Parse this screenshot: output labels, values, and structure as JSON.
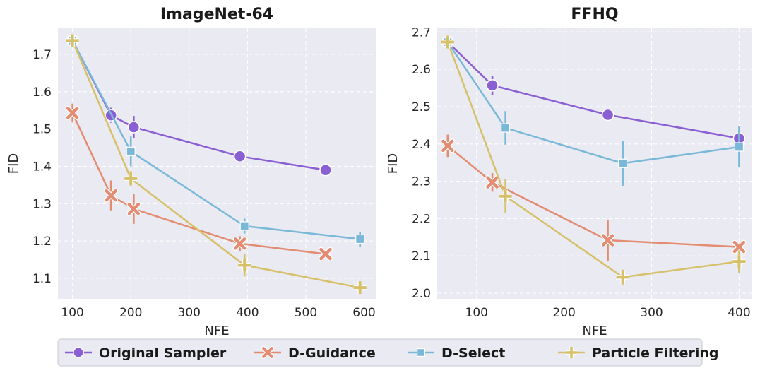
{
  "legend": {
    "placement": "bottom-center",
    "entries": [
      {
        "name": "Original Sampler",
        "color": "#8a5fd3",
        "marker": "circle"
      },
      {
        "name": "D-Guidance",
        "color": "#e38c72",
        "marker": "x"
      },
      {
        "name": "D-Select",
        "color": "#7ab8d8",
        "marker": "square"
      },
      {
        "name": "Particle Filtering",
        "color": "#d6c06a",
        "marker": "plus"
      }
    ]
  },
  "chart_data": [
    {
      "type": "line",
      "title": "ImageNet-64",
      "xlabel": "NFE",
      "ylabel": "FID",
      "xlim": [
        75,
        620
      ],
      "ylim": [
        1.045,
        1.77
      ],
      "xticks": [
        100,
        200,
        300,
        400,
        500,
        600
      ],
      "yticks": [
        1.1,
        1.2,
        1.3,
        1.4,
        1.5,
        1.6,
        1.7
      ],
      "grid": true,
      "series": [
        {
          "name": "Original Sampler",
          "marker": "circle",
          "color": "#8a5fd3",
          "points": [
            {
              "x": 100,
              "y": 1.737,
              "err": 0.01
            },
            {
              "x": 166,
              "y": 1.537,
              "err": 0.02
            },
            {
              "x": 205,
              "y": 1.505,
              "err": 0.03
            },
            {
              "x": 387,
              "y": 1.427,
              "err": 0.015
            },
            {
              "x": 534,
              "y": 1.39,
              "err": 0.007
            }
          ]
        },
        {
          "name": "D-Guidance",
          "marker": "x",
          "color": "#e38c72",
          "points": [
            {
              "x": 100,
              "y": 1.543,
              "err": 0.025
            },
            {
              "x": 166,
              "y": 1.322,
              "err": 0.04
            },
            {
              "x": 205,
              "y": 1.286,
              "err": 0.04
            },
            {
              "x": 387,
              "y": 1.193,
              "err": 0.02
            },
            {
              "x": 534,
              "y": 1.165,
              "err": 0.008
            }
          ]
        },
        {
          "name": "D-Select",
          "marker": "square",
          "color": "#7ab8d8",
          "points": [
            {
              "x": 100,
              "y": 1.737,
              "err": 0.01
            },
            {
              "x": 200,
              "y": 1.44,
              "err": 0.04
            },
            {
              "x": 395,
              "y": 1.24,
              "err": 0.02
            },
            {
              "x": 593,
              "y": 1.205,
              "err": 0.02
            }
          ]
        },
        {
          "name": "Particle Filtering",
          "marker": "plus",
          "color": "#d6c06a",
          "points": [
            {
              "x": 100,
              "y": 1.737,
              "err": 0.01
            },
            {
              "x": 200,
              "y": 1.367,
              "err": 0.02
            },
            {
              "x": 395,
              "y": 1.135,
              "err": 0.03
            },
            {
              "x": 593,
              "y": 1.075,
              "err": 0.01
            }
          ]
        }
      ]
    },
    {
      "type": "line",
      "title": "FFHQ",
      "xlabel": "NFE",
      "ylabel": "FID",
      "xlim": [
        55,
        415
      ],
      "ylim": [
        1.985,
        2.71
      ],
      "xticks": [
        100,
        200,
        300,
        400
      ],
      "yticks": [
        2.0,
        2.1,
        2.2,
        2.3,
        2.4,
        2.5,
        2.6,
        2.7
      ],
      "grid": true,
      "series": [
        {
          "name": "Original Sampler",
          "marker": "circle",
          "color": "#8a5fd3",
          "points": [
            {
              "x": 67,
              "y": 2.673,
              "err": 0.01
            },
            {
              "x": 118,
              "y": 2.557,
              "err": 0.025
            },
            {
              "x": 250,
              "y": 2.478,
              "err": 0.012
            },
            {
              "x": 400,
              "y": 2.415,
              "err": 0.02
            }
          ]
        },
        {
          "name": "D-Guidance",
          "marker": "x",
          "color": "#e38c72",
          "points": [
            {
              "x": 67,
              "y": 2.395,
              "err": 0.03
            },
            {
              "x": 118,
              "y": 2.297,
              "err": 0.025
            },
            {
              "x": 250,
              "y": 2.142,
              "err": 0.055
            },
            {
              "x": 400,
              "y": 2.124,
              "err": 0.01
            }
          ]
        },
        {
          "name": "D-Select",
          "marker": "square",
          "color": "#7ab8d8",
          "points": [
            {
              "x": 67,
              "y": 2.673,
              "err": 0.01
            },
            {
              "x": 133,
              "y": 2.443,
              "err": 0.045
            },
            {
              "x": 267,
              "y": 2.348,
              "err": 0.06
            },
            {
              "x": 400,
              "y": 2.392,
              "err": 0.055
            }
          ]
        },
        {
          "name": "Particle Filtering",
          "marker": "plus",
          "color": "#d6c06a",
          "points": [
            {
              "x": 67,
              "y": 2.673,
              "err": 0.01
            },
            {
              "x": 133,
              "y": 2.26,
              "err": 0.045
            },
            {
              "x": 267,
              "y": 2.043,
              "err": 0.02
            },
            {
              "x": 400,
              "y": 2.085,
              "err": 0.03
            }
          ]
        }
      ]
    }
  ]
}
